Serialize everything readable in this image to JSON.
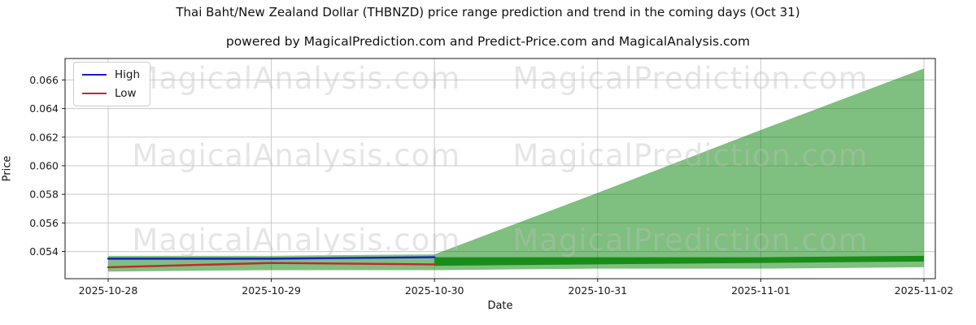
{
  "title": "Thai Baht/New Zealand Dollar (THBNZD) price range prediction and trend in the coming days (Oct 31)",
  "subtitle": "powered by MagicalPrediction.com and Predict-Price.com and MagicalAnalysis.com",
  "axes": {
    "x_label": "Date",
    "y_label": "Price"
  },
  "legend": {
    "position": "upper left",
    "items": [
      {
        "label": "High",
        "color": "#1b1bc8"
      },
      {
        "label": "Low",
        "color": "#c4262e"
      }
    ]
  },
  "watermarks": {
    "left_text": "MagicalAnalysis.com",
    "right_text": "MagicalPrediction.com"
  },
  "chart_data": {
    "type": "line",
    "title": "Thai Baht/New Zealand Dollar (THBNZD) price range prediction and trend in the coming days (Oct 31)",
    "xlabel": "Date",
    "ylabel": "Price",
    "x": [
      "2025-10-28",
      "2025-10-29",
      "2025-10-30",
      "2025-10-31",
      "2025-11-01",
      "2025-11-02"
    ],
    "yticks": [
      0.054,
      0.056,
      0.058,
      0.06,
      0.062,
      0.064,
      0.066
    ],
    "ytick_labels": [
      "0.054",
      "0.056",
      "0.058",
      "0.060",
      "0.062",
      "0.064",
      "0.066"
    ],
    "ylim": [
      0.0521,
      0.0675
    ],
    "grid": true,
    "grid_color": "#c9c9c9",
    "spine_color": "#1a1a1a",
    "green_fill": "#008000",
    "series": [
      {
        "name": "High",
        "color": "#1b1bc8",
        "width": 2.4,
        "x_idx": [
          0,
          1,
          2
        ],
        "values": [
          0.0535,
          0.0535,
          0.0536
        ]
      },
      {
        "name": "Low",
        "color": "#c4262e",
        "width": 2.4,
        "x_idx": [
          0,
          1,
          2
        ],
        "values": [
          0.0529,
          0.0532,
          0.0531
        ]
      }
    ],
    "bands": [
      {
        "name": "history-range-band",
        "opacity": 0.5,
        "x_idx": [
          0,
          1,
          2
        ],
        "upper": [
          0.0537,
          0.0537,
          0.0538
        ],
        "lower": [
          0.0526,
          0.0527,
          0.0527
        ]
      },
      {
        "name": "prediction-fan-band",
        "opacity": 0.5,
        "x_idx": [
          2,
          3,
          4,
          5
        ],
        "upper": [
          0.0538,
          0.0581,
          0.0625,
          0.0668
        ],
        "lower": [
          0.0527,
          0.0528,
          0.0528,
          0.0529
        ]
      },
      {
        "name": "trend-band",
        "opacity": 0.8,
        "x_idx": [
          2,
          3,
          4,
          5
        ],
        "upper": [
          0.0536,
          0.0536,
          0.0536,
          0.0537
        ],
        "lower": [
          0.053,
          0.0531,
          0.0532,
          0.0533
        ]
      }
    ]
  }
}
